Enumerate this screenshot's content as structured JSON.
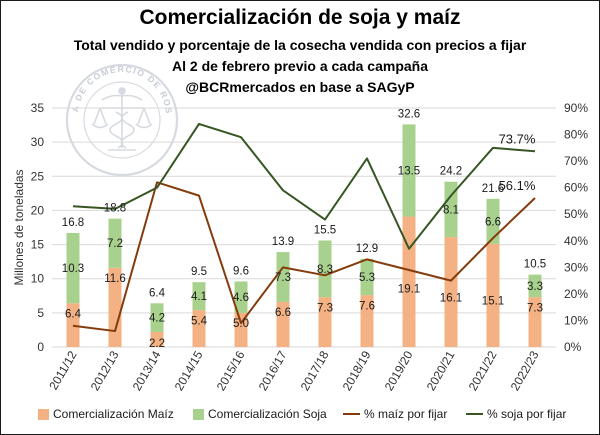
{
  "header": {
    "title": "Comercialización de soja y maíz",
    "subtitle_1": "Total vendido y porcentaje de la cosecha vendida con precios a fijar",
    "subtitle_2": "Al 2 de febrero previo a cada campaña",
    "subtitle_3": "@BCRmercados en base a SAGyP"
  },
  "logo": {
    "text": "BOLSA DE COMERCIO DE ROSARIO",
    "icon": "caduceus-scales-seal-icon",
    "color": "#c9ced6"
  },
  "colors": {
    "maiz_bar": "#f4b183",
    "soja_bar": "#a9d18e",
    "maiz_line": "#843c0c",
    "soja_line": "#375623"
  },
  "chart_data": {
    "type": "bar",
    "stacked": true,
    "title": "Comercialización de soja y maíz",
    "categories": [
      "2011/12",
      "2012/13",
      "2013/14",
      "2014/15",
      "2015/16",
      "2016/17",
      "2017/18",
      "2018/19",
      "2019/20",
      "2020/21",
      "2021/22",
      "2022/23"
    ],
    "series": [
      {
        "name": "Comercialización Maíz",
        "type": "bar",
        "axis": "left",
        "color": "#f4b183",
        "values": [
          6.4,
          11.6,
          2.2,
          5.4,
          5.0,
          6.6,
          7.3,
          7.6,
          19.1,
          16.1,
          15.1,
          7.3
        ]
      },
      {
        "name": "Comercialización Soja",
        "type": "bar",
        "axis": "left",
        "color": "#a9d18e",
        "values": [
          10.3,
          7.2,
          4.2,
          4.1,
          4.6,
          7.3,
          8.3,
          5.3,
          13.5,
          8.1,
          6.6,
          3.3
        ]
      },
      {
        "name": "% maíz por fijar",
        "type": "line",
        "axis": "right",
        "color": "#843c0c",
        "values": [
          8,
          6,
          62,
          57,
          9,
          30,
          27,
          33,
          29,
          25,
          41,
          56.1
        ]
      },
      {
        "name": "% soja por fijar",
        "type": "line",
        "axis": "right",
        "color": "#375623",
        "values": [
          53,
          52,
          60,
          84,
          79,
          59,
          48,
          71,
          37,
          57,
          75,
          73.7
        ]
      }
    ],
    "totals": [
      16.8,
      18.8,
      6.4,
      9.5,
      9.6,
      13.9,
      15.5,
      12.9,
      32.6,
      24.2,
      21.6,
      10.5
    ],
    "maiz_labels": [
      "6.4",
      "11.6",
      "2.2",
      "5.4",
      "5.0",
      "6.6",
      "7.3",
      "7.6",
      "19.1",
      "16.1",
      "15.1",
      "7.3"
    ],
    "soja_labels": [
      "10.3",
      "7.2",
      "4.2",
      "4.1",
      "4.6",
      "7.3",
      "8.3",
      "5.3",
      "13.5",
      "8.1",
      "6.6",
      "3.3"
    ],
    "total_labels": [
      "16.8",
      "18.8",
      "6.4",
      "9.5",
      "9.6",
      "13.9",
      "15.5",
      "12.9",
      "32.6",
      "24.2",
      "21.6",
      "10.5"
    ],
    "end_labels": {
      "maiz": "56.1%",
      "soja": "73.7%"
    },
    "ylabel": "Millones de toneladas",
    "ylim": [
      0,
      35
    ],
    "yticks": [
      "0",
      "5",
      "10",
      "15",
      "20",
      "25",
      "30",
      "35"
    ],
    "y2lim": [
      0,
      90
    ],
    "y2ticks": [
      "0%",
      "10%",
      "20%",
      "30%",
      "40%",
      "50%",
      "60%",
      "70%",
      "80%",
      "90%"
    ],
    "grid": true,
    "legend_position": "bottom"
  }
}
